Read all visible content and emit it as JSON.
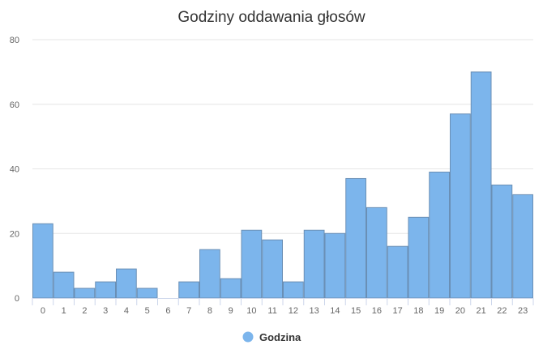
{
  "chart_data": {
    "type": "bar",
    "title": "Godziny oddawania głosów",
    "xlabel": "",
    "ylabel": "",
    "categories": [
      "0",
      "1",
      "2",
      "3",
      "4",
      "5",
      "6",
      "7",
      "8",
      "9",
      "10",
      "11",
      "12",
      "13",
      "14",
      "15",
      "16",
      "17",
      "18",
      "19",
      "20",
      "21",
      "22",
      "23"
    ],
    "series": [
      {
        "name": "Godzina",
        "values": [
          23,
          8,
          3,
          5,
          9,
          3,
          0,
          5,
          15,
          6,
          21,
          18,
          5,
          21,
          20,
          37,
          28,
          16,
          25,
          39,
          57,
          70,
          35,
          32
        ]
      }
    ],
    "ylim": [
      0,
      80
    ],
    "yticks": [
      "0",
      "20",
      "40",
      "60",
      "80"
    ],
    "grid": true,
    "legend_position": "bottom-center",
    "colors": {
      "bar": "#7cb5ec",
      "bar_stroke": "#6a8fb5",
      "grid": "#e6e6e6",
      "axis": "#ccd6eb"
    }
  }
}
